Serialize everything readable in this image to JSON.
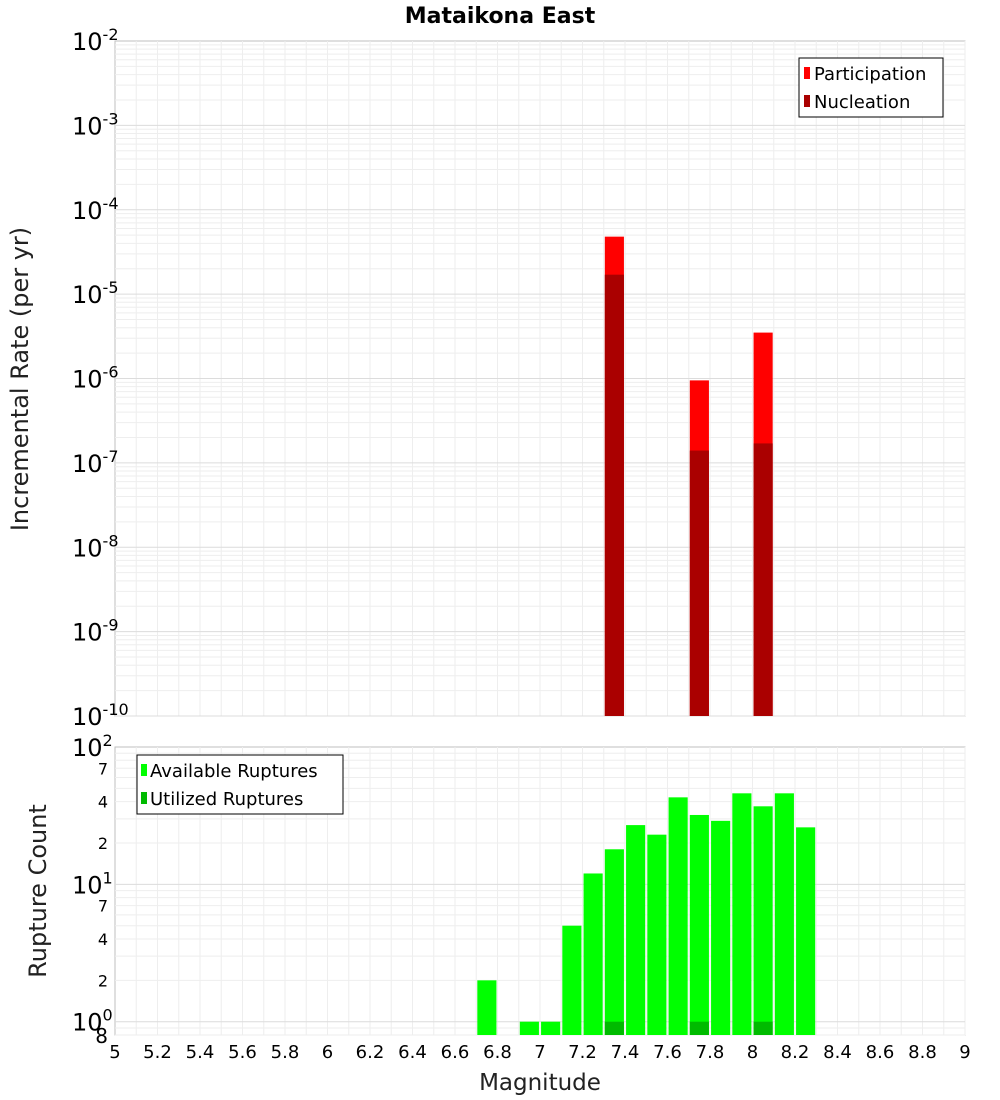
{
  "chart_data": [
    {
      "type": "bar",
      "title": "Mataikona East",
      "xlabel": "",
      "ylabel": "Incremental Rate (per yr)",
      "yscale": "log",
      "ylim": [
        1e-10,
        0.01
      ],
      "xlim": [
        5,
        9
      ],
      "bar_width": 0.09,
      "grid": true,
      "legend_position": "top-right",
      "colors": {
        "participation": "#ff0000",
        "nucleation": "#aa0000"
      },
      "series": [
        {
          "name": "Participation",
          "x": [
            7.35,
            7.75,
            8.05
          ],
          "values": [
            4.8e-05,
            9.5e-07,
            3.5e-06
          ]
        },
        {
          "name": "Nucleation",
          "x": [
            7.35,
            7.75,
            8.05
          ],
          "values": [
            1.7e-05,
            1.4e-07,
            1.7e-07
          ]
        }
      ]
    },
    {
      "type": "bar",
      "xlabel": "Magnitude",
      "ylabel": "Rupture Count",
      "yscale": "log",
      "ylim": [
        0.8,
        100
      ],
      "xlim": [
        5,
        9
      ],
      "bar_width": 0.09,
      "grid": true,
      "legend_position": "top-left",
      "colors": {
        "available": "#00ff00",
        "utilized": "#00bb00"
      },
      "series": [
        {
          "name": "Available Ruptures",
          "x": [
            6.75,
            6.95,
            7.05,
            7.15,
            7.25,
            7.35,
            7.45,
            7.55,
            7.65,
            7.75,
            7.85,
            7.95,
            8.05,
            8.15,
            8.25
          ],
          "values": [
            2,
            1,
            1,
            5,
            12,
            18,
            27,
            23,
            43,
            32,
            29,
            46,
            37,
            46,
            26
          ]
        },
        {
          "name": "Utilized Ruptures",
          "x": [
            7.35,
            7.75,
            8.05
          ],
          "values": [
            1,
            1,
            1
          ]
        }
      ],
      "x_ticks": [
        "5",
        "5.2",
        "5.4",
        "5.6",
        "5.8",
        "6",
        "6.2",
        "6.4",
        "6.6",
        "6.8",
        "7",
        "7.2",
        "7.4",
        "7.6",
        "7.8",
        "8",
        "8.2",
        "8.4",
        "8.6",
        "8.8",
        "9"
      ]
    }
  ],
  "top_axis": {
    "base": "10",
    "exponents": [
      "-2",
      "-3",
      "-4",
      "-5",
      "-6",
      "-7",
      "-8",
      "-9",
      "-10"
    ]
  },
  "bottom_axis": {
    "major": [
      {
        "base": "10",
        "exp": "2"
      },
      {
        "base": "10",
        "exp": "1"
      },
      {
        "base": "10",
        "exp": "0"
      }
    ],
    "minor_labels": [
      "7",
      "4",
      "2",
      "7",
      "4",
      "2",
      "8"
    ]
  }
}
